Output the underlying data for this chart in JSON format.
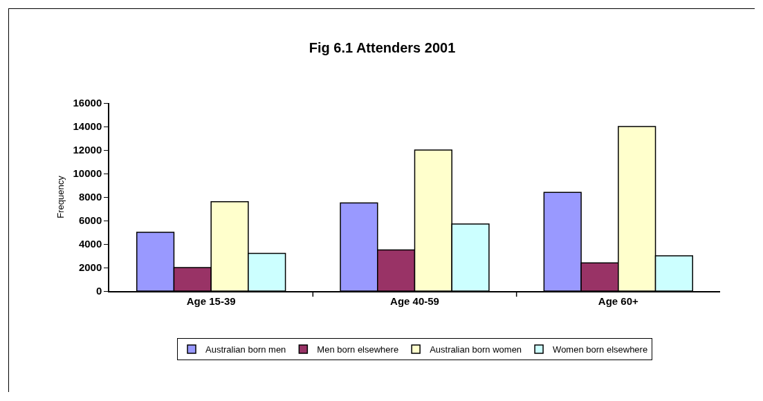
{
  "chart_data": {
    "type": "bar",
    "title": "Fig 6.1 Attenders 2001",
    "ylabel": "Frequency",
    "categories": [
      "Age 15-39",
      "Age 40-59",
      "Age 60+"
    ],
    "series": [
      {
        "name": "Australian born men",
        "color": "#9999ff",
        "values": [
          5000,
          7500,
          8400
        ]
      },
      {
        "name": "Men born elsewhere",
        "color": "#993366",
        "values": [
          2000,
          3500,
          2400
        ]
      },
      {
        "name": "Australian born women",
        "color": "#ffffcc",
        "values": [
          7600,
          12000,
          14000
        ]
      },
      {
        "name": "Women born elsewhere",
        "color": "#ccffff",
        "values": [
          3200,
          5700,
          3000
        ]
      }
    ],
    "ylim": [
      0,
      16000
    ],
    "yticks": [
      0,
      2000,
      4000,
      6000,
      8000,
      10000,
      12000,
      14000,
      16000
    ],
    "grid": false,
    "legend": "bottom"
  }
}
